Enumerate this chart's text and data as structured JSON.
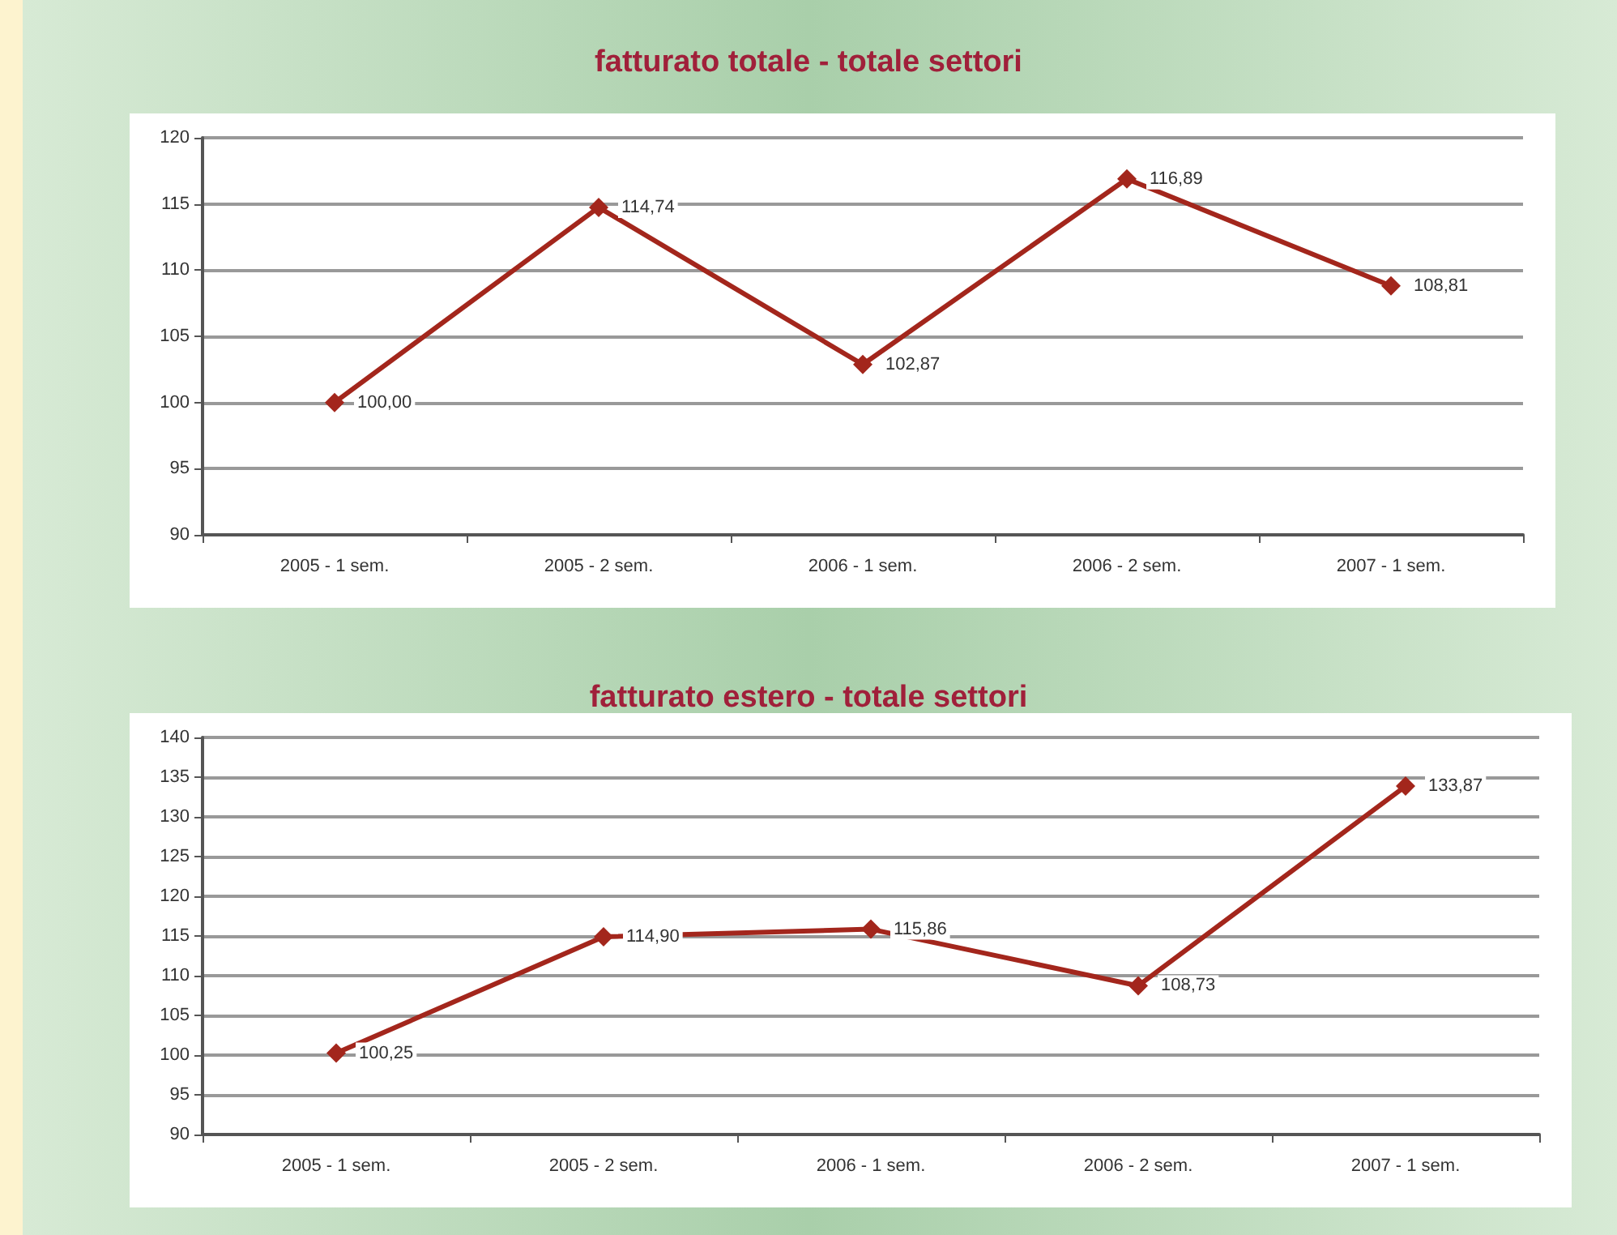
{
  "chart_data": [
    {
      "type": "line",
      "title": "fatturato totale - totale settori",
      "categories": [
        "2005 - 1 sem.",
        "2005 - 2 sem.",
        "2006 - 1 sem.",
        "2006 - 2 sem.",
        "2007 - 1 sem."
      ],
      "series": [
        {
          "color": "#a3261c",
          "values": [
            100.0,
            114.74,
            102.87,
            116.89,
            108.81
          ],
          "value_labels": [
            "100,00",
            "114,74",
            "102,87",
            "116,89",
            "108,81"
          ]
        }
      ],
      "ylim": [
        90,
        120
      ],
      "yticks": [
        90,
        95,
        100,
        105,
        110,
        115,
        120
      ],
      "grid": "y",
      "marker": "diamond"
    },
    {
      "type": "line",
      "title": "fatturato estero - totale settori",
      "categories": [
        "2005 - 1 sem.",
        "2005 - 2 sem.",
        "2006 - 1 sem.",
        "2006 - 2 sem.",
        "2007 - 1 sem."
      ],
      "series": [
        {
          "color": "#a3261c",
          "values": [
            100.25,
            114.9,
            115.86,
            108.73,
            133.87
          ],
          "value_labels": [
            "100,25",
            "114,90",
            "115,86",
            "108,73",
            "133,87"
          ]
        }
      ],
      "ylim": [
        90,
        140
      ],
      "yticks": [
        90,
        95,
        100,
        105,
        110,
        115,
        120,
        125,
        130,
        135,
        140
      ],
      "grid": "y",
      "marker": "diamond"
    }
  ]
}
